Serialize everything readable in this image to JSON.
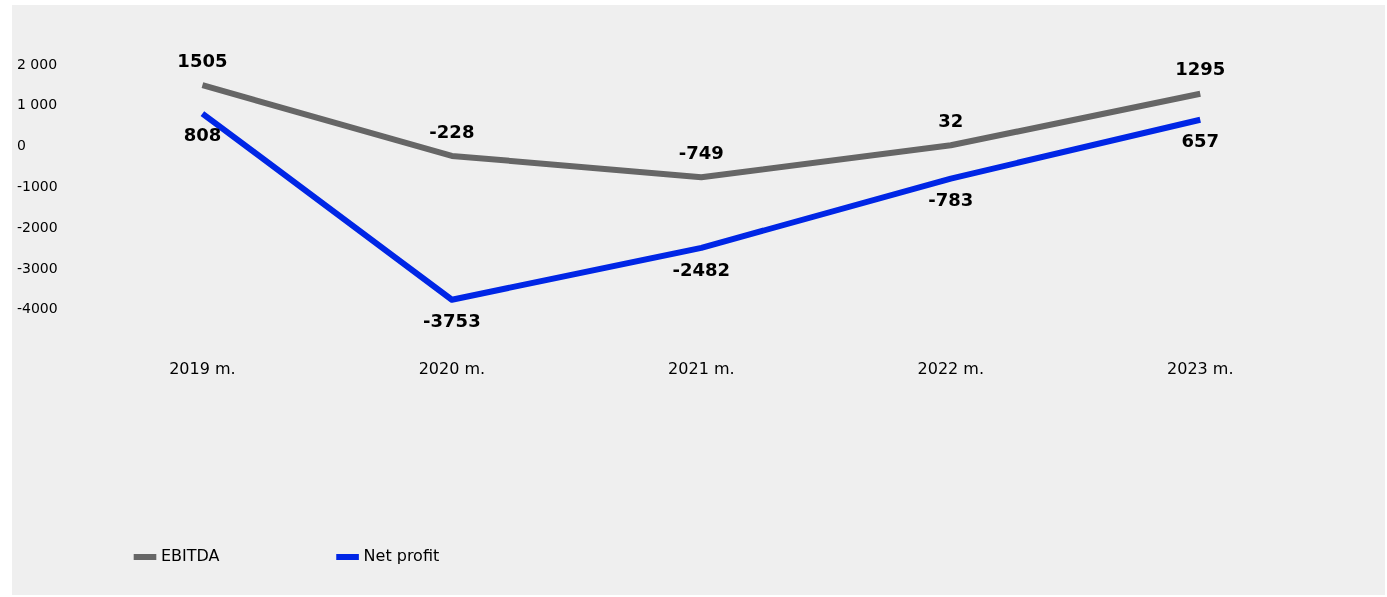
{
  "chart_data": {
    "type": "line",
    "categories": [
      "2019 m.",
      "2020 m.",
      "2021 m.",
      "2022 m.",
      "2023 m."
    ],
    "series": [
      {
        "name": "EBITDA",
        "color": "#666666",
        "values": [
          1505,
          -228,
          -749,
          32,
          1295
        ]
      },
      {
        "name": "Net profit",
        "color": "#0026e6",
        "values": [
          808,
          -3753,
          -2482,
          -783,
          657
        ]
      }
    ],
    "ylim": [
      -4000,
      2000
    ],
    "yticks": [
      {
        "value": -4000,
        "label": "-4000"
      },
      {
        "value": -3000,
        "label": "-3000"
      },
      {
        "value": -2000,
        "label": "-2000"
      },
      {
        "value": -1000,
        "label": "-1000"
      },
      0,
      {
        "value": 1000,
        "label": "1 000"
      },
      {
        "value": 2000,
        "label": "2 000"
      }
    ],
    "grid": false,
    "legend": "bottom",
    "marker": "none",
    "line_style": "solid",
    "data_labels": true
  }
}
